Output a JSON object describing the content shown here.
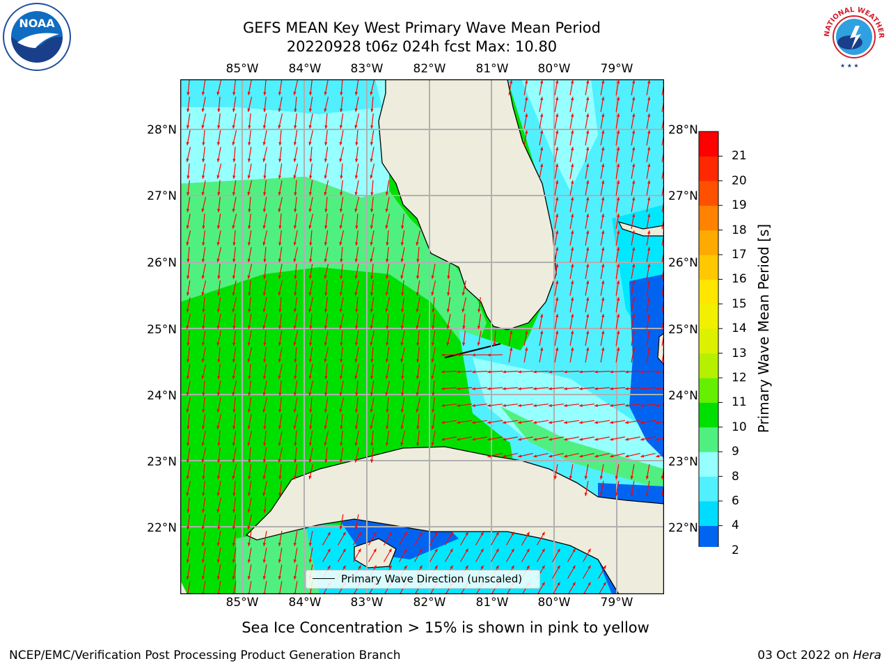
{
  "title": {
    "line1": "GEFS MEAN Key West Primary Wave Mean Period",
    "line2": "20220928 t06z 024h fcst   Max: 10.80"
  },
  "longitude_labels": [
    "85°W",
    "84°W",
    "83°W",
    "82°W",
    "81°W",
    "80°W",
    "79°W"
  ],
  "latitude_labels": [
    "28°N",
    "27°N",
    "26°N",
    "25°N",
    "24°N",
    "23°N",
    "22°N"
  ],
  "legend": {
    "label": "Primary Wave Direction (unscaled)"
  },
  "colorbar": {
    "label": "Primary Wave Mean Period [s]",
    "ticks": [
      "2",
      "4",
      "6",
      "8",
      "9",
      "10",
      "11",
      "12",
      "13",
      "14",
      "15",
      "16",
      "17",
      "18",
      "19",
      "20",
      "21"
    ],
    "colors": [
      "#0064f0",
      "#00dcff",
      "#50f0ff",
      "#96ffff",
      "#50f080",
      "#00e000",
      "#64f000",
      "#b4f000",
      "#dcf000",
      "#f0f000",
      "#ffe600",
      "#ffc800",
      "#ffaa00",
      "#ff8200",
      "#ff5000",
      "#ff2800",
      "#ff0000"
    ],
    "under_color": "#0000e0"
  },
  "note": "Sea Ice Concentration > 15% is shown in pink to yellow",
  "footer": {
    "left": "NCEP/EMC/Verification Post Processing Product Generation Branch",
    "right_date": "03 Oct 2022 on ",
    "right_machine": "Hera"
  },
  "logos": {
    "noaa": "NOAA",
    "nws": "NATIONAL WEATHER SERVICE"
  },
  "map_colors": {
    "land": "#eeecdc",
    "green": "#00e000",
    "lightgreen": "#50f080",
    "palecyan": "#96ffff",
    "cyan": "#50f0ff",
    "brightcyan": "#00e8ff",
    "blue": "#0064f0",
    "arrow": "#ff0000",
    "grid": "#b0b0b0"
  }
}
